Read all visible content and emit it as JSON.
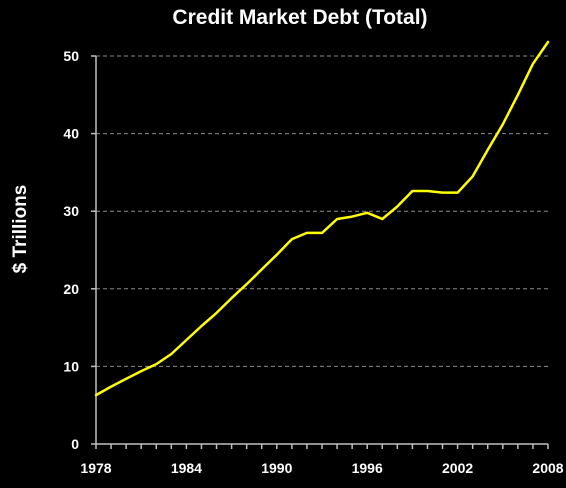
{
  "chart_data": {
    "type": "line",
    "title": "Credit Market Debt (Total)",
    "xlabel": "",
    "ylabel": "$ Trillions",
    "xlim": [
      1978,
      2008
    ],
    "ylim": [
      0,
      50
    ],
    "xticks": [
      1978,
      1984,
      1990,
      1996,
      2002,
      2008
    ],
    "yticks": [
      0,
      10,
      20,
      30,
      40,
      50
    ],
    "grid": true,
    "line_color": "#ffff00",
    "background_color": "#000000",
    "series": [
      {
        "x": [
          1978,
          1979,
          1980,
          1981,
          1982,
          1983,
          1984,
          1985,
          1986,
          1987,
          1988,
          1989,
          1990,
          1991,
          1992,
          1993,
          1994,
          1995,
          1996,
          1997,
          1998,
          1999,
          2000,
          2001,
          2002,
          2003,
          2004,
          2005,
          2006,
          2007,
          2008
        ],
        "values": [
          6.3,
          7.4,
          8.4,
          9.4,
          10.3,
          11.6,
          13.4,
          15.2,
          16.9,
          18.8,
          20.6,
          22.5,
          24.4,
          26.4,
          27.2,
          27.2,
          29.0,
          29.3,
          29.8,
          29.0,
          30.6,
          32.6,
          32.6,
          32.4,
          32.4,
          34.5,
          37.9,
          41.2,
          45.0,
          49.0,
          51.8
        ]
      }
    ]
  }
}
